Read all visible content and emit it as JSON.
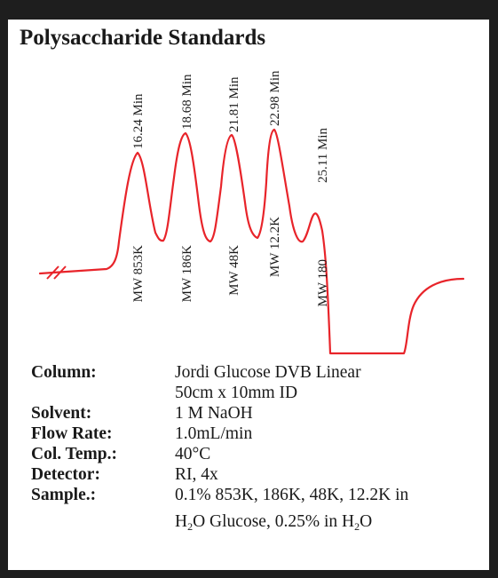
{
  "title": "Polysaccharide Standards",
  "chart_data": {
    "type": "line",
    "title": "Polysaccharide Standards",
    "xlabel": "",
    "ylabel": "",
    "line_color": "#e8242a",
    "peaks": [
      {
        "time_label": "16.24 Min",
        "mw_label": "MW 853K",
        "retention_min": 16.24
      },
      {
        "time_label": "18.68 Min",
        "mw_label": "MW 186K",
        "retention_min": 18.68
      },
      {
        "time_label": "21.81 Min",
        "mw_label": "MW 48K",
        "retention_min": 21.81
      },
      {
        "time_label": "22.98 Min",
        "mw_label": "MW 12.2K",
        "retention_min": 22.98
      },
      {
        "time_label": "25.11 Min",
        "mw_label": "MW 180",
        "retention_min": 25.11
      }
    ]
  },
  "conditions": [
    {
      "key": "Column:",
      "lines": [
        [
          {
            "t": "Jordi Glucose DVB  Linear"
          }
        ],
        [
          {
            "t": "50cm x 10mm ID"
          }
        ]
      ]
    },
    {
      "key": "Solvent:",
      "lines": [
        [
          {
            "t": "1 M NaOH"
          }
        ]
      ]
    },
    {
      "key": "Flow Rate:",
      "lines": [
        [
          {
            "t": "1.0mL/min"
          }
        ]
      ]
    },
    {
      "key": "Col. Temp.:",
      "lines": [
        [
          {
            "t": "40°C"
          }
        ]
      ]
    },
    {
      "key": "Detector:",
      "lines": [
        [
          {
            "t": "RI, 4x"
          }
        ]
      ]
    },
    {
      "key": "Sample.:",
      "lines": [
        [
          {
            "t": "0.1% 853K, 186K, 48K, 12.2K in"
          }
        ],
        [
          {
            "t": "H"
          },
          {
            "sub": "2"
          },
          {
            "t": "O Glucose, 0.25% in H"
          },
          {
            "sub": "2"
          },
          {
            "t": "O"
          }
        ]
      ]
    }
  ]
}
